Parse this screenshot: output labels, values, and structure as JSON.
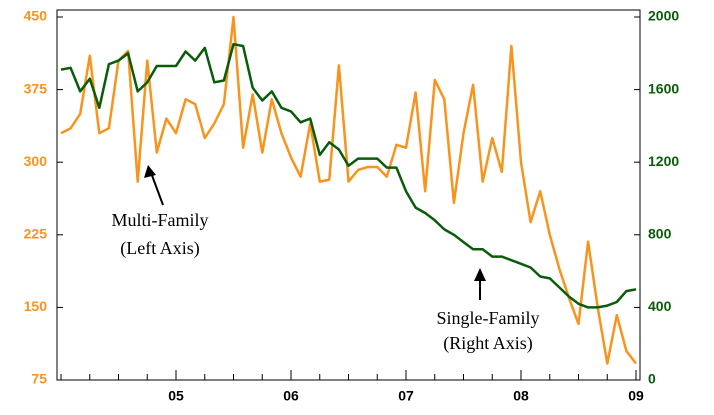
{
  "chart_data": {
    "type": "line",
    "categories": [
      null,
      null,
      null,
      null,
      null,
      null,
      null,
      null,
      null,
      null,
      null,
      null,
      "05",
      null,
      null,
      null,
      null,
      null,
      null,
      null,
      null,
      null,
      null,
      null,
      "06",
      null,
      null,
      null,
      null,
      null,
      null,
      null,
      null,
      null,
      null,
      null,
      "07",
      null,
      null,
      null,
      null,
      null,
      null,
      null,
      null,
      null,
      null,
      null,
      "08",
      null,
      null,
      null,
      null,
      null,
      null,
      null,
      null,
      null,
      null,
      null,
      "09"
    ],
    "series": [
      {
        "color": "#f7941d",
        "axis": "y",
        "values": [
          330,
          335,
          350,
          410,
          330,
          335,
          405,
          415,
          280,
          405,
          310,
          345,
          330,
          365,
          360,
          325,
          340,
          360,
          450,
          315,
          370,
          310,
          365,
          330,
          305,
          285,
          340,
          280,
          282,
          400,
          280,
          292,
          295,
          295,
          285,
          318,
          315,
          372,
          270,
          385,
          365,
          258,
          330,
          380,
          280,
          325,
          290,
          420,
          300,
          238,
          270,
          225,
          190,
          160,
          133,
          218,
          150,
          92,
          142,
          105,
          92
        ]
      },
      {
        "color": "#0a5c0a",
        "axis": "y2",
        "values": [
          1710,
          1720,
          1590,
          1660,
          1500,
          1740,
          1760,
          1800,
          1590,
          1640,
          1730,
          1730,
          1730,
          1810,
          1760,
          1830,
          1640,
          1650,
          1850,
          1840,
          1610,
          1540,
          1590,
          1500,
          1480,
          1420,
          1440,
          1240,
          1310,
          1270,
          1180,
          1220,
          1220,
          1220,
          1170,
          1170,
          1040,
          950,
          920,
          880,
          830,
          800,
          760,
          720,
          720,
          680,
          680,
          660,
          640,
          620,
          570,
          560,
          510,
          460,
          420,
          400,
          400,
          410,
          430,
          490,
          500
        ]
      }
    ],
    "ylim": [
      75,
      450
    ],
    "yticks": [
      75,
      150,
      225,
      300,
      375,
      450
    ],
    "y2lim": [
      0,
      2000
    ],
    "y2ticks": [
      0,
      400,
      800,
      1200,
      1600,
      2000
    ],
    "annotations": [
      "Multi-Family",
      "(Left Axis)",
      "Single-Family",
      "(Right Axis)"
    ]
  }
}
